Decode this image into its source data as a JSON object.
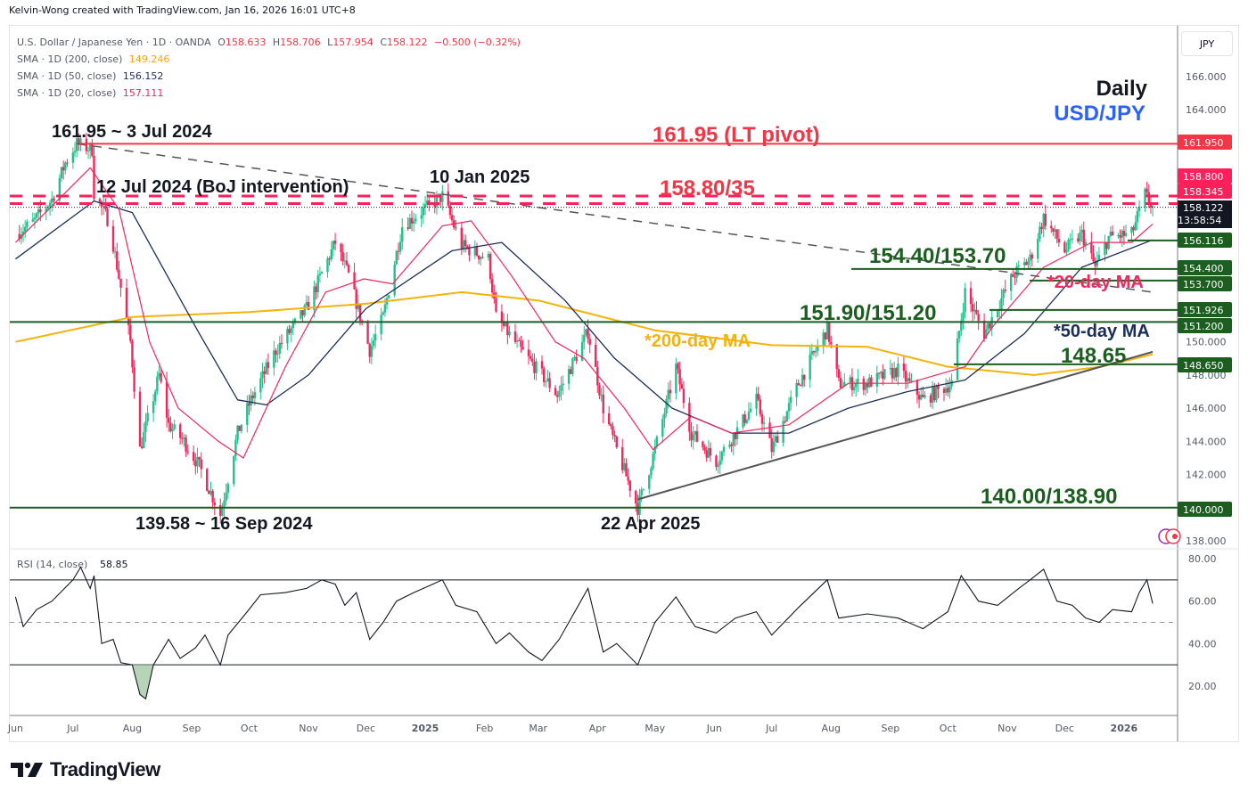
{
  "header": {
    "credit": "Kelvin-Wong created with TradingView.com, Jan 16, 2026 16:01 UTC+8"
  },
  "legend": {
    "symbol": "U.S. Dollar / Japanese Yen · 1D · OANDA",
    "open_label": "O",
    "open": "158.633",
    "high_label": "H",
    "high": "158.706",
    "low_label": "L",
    "low": "157.954",
    "close_label": "C",
    "close": "158.122",
    "change": "−0.500 (−0.32%)",
    "sma200_label": "SMA · 1D (200, close)",
    "sma200": "149.246",
    "sma50_label": "SMA · 1D (50, close)",
    "sma50": "156.152",
    "sma20_label": "SMA · 1D (20, close)",
    "sma20": "157.111"
  },
  "currency_button": "JPY",
  "branding": {
    "logo_text": "TradingView"
  },
  "colors": {
    "up": "#22c08a",
    "down": "#f2275d",
    "sma20": "#f2275d",
    "sma50": "#1a2e5a",
    "sma200": "#f5b30a",
    "pivot": "#f23645",
    "resistance": "#ff1f5a",
    "support": "#1b5e20",
    "title_blue": "#2962ff"
  },
  "chart_data": {
    "type": "candlestick",
    "title": "USD/JPY Daily",
    "subtitle": "Daily",
    "symbol_label": "USD/JPY",
    "ylabel": "JPY",
    "ylim": [
      137.3,
      167.0
    ],
    "price_ticks": [
      "166.000",
      "164.000",
      "150.000",
      "148.000",
      "146.000",
      "144.000",
      "142.000",
      "138.000"
    ],
    "x_ticks": [
      "Jun",
      "Jul",
      "Aug",
      "Sep",
      "Oct",
      "Nov",
      "Dec",
      "2025",
      "Feb",
      "Mar",
      "Apr",
      "May",
      "Jun",
      "Jul",
      "Aug",
      "Sep",
      "Oct",
      "Nov",
      "Dec",
      "2026"
    ],
    "price_path": [
      [
        "2024-06-01",
        156.5
      ],
      [
        "2024-06-10",
        157.2
      ],
      [
        "2024-06-20",
        158.6
      ],
      [
        "2024-06-27",
        160.8
      ],
      [
        "2024-07-03",
        161.95
      ],
      [
        "2024-07-11",
        161.6
      ],
      [
        "2024-07-12",
        159.0
      ],
      [
        "2024-07-20",
        157.2
      ],
      [
        "2024-07-31",
        150.0
      ],
      [
        "2024-08-05",
        143.5
      ],
      [
        "2024-08-15",
        148.0
      ],
      [
        "2024-08-20",
        145.0
      ],
      [
        "2024-08-28",
        144.0
      ],
      [
        "2024-09-05",
        142.5
      ],
      [
        "2024-09-16",
        139.58
      ],
      [
        "2024-09-25",
        144.5
      ],
      [
        "2024-10-02",
        146.5
      ],
      [
        "2024-10-15",
        149.5
      ],
      [
        "2024-10-31",
        152.0
      ],
      [
        "2024-11-15",
        156.0
      ],
      [
        "2024-11-22",
        154.0
      ],
      [
        "2024-12-03",
        149.5
      ],
      [
        "2024-12-10",
        151.5
      ],
      [
        "2024-12-20",
        157.0
      ],
      [
        "2025-01-10",
        158.8
      ],
      [
        "2025-01-20",
        155.8
      ],
      [
        "2025-02-03",
        155.0
      ],
      [
        "2025-02-07",
        151.5
      ],
      [
        "2025-02-20",
        149.5
      ],
      [
        "2025-03-03",
        148.0
      ],
      [
        "2025-03-11",
        146.8
      ],
      [
        "2025-03-27",
        150.6
      ],
      [
        "2025-04-04",
        146.0
      ],
      [
        "2025-04-11",
        143.5
      ],
      [
        "2025-04-22",
        140.0
      ],
      [
        "2025-05-01",
        143.5
      ],
      [
        "2025-05-12",
        148.5
      ],
      [
        "2025-05-20",
        144.5
      ],
      [
        "2025-06-02",
        142.8
      ],
      [
        "2025-06-12",
        144.5
      ],
      [
        "2025-06-23",
        146.5
      ],
      [
        "2025-07-01",
        143.5
      ],
      [
        "2025-07-15",
        147.5
      ],
      [
        "2025-07-30",
        150.8
      ],
      [
        "2025-08-05",
        147.5
      ],
      [
        "2025-08-20",
        147.5
      ],
      [
        "2025-09-05",
        148.3
      ],
      [
        "2025-09-18",
        146.5
      ],
      [
        "2025-10-03",
        147.5
      ],
      [
        "2025-10-10",
        153.0
      ],
      [
        "2025-10-20",
        150.5
      ],
      [
        "2025-11-04",
        154.0
      ],
      [
        "2025-11-13",
        155.0
      ],
      [
        "2025-11-20",
        157.5
      ],
      [
        "2025-12-01",
        155.5
      ],
      [
        "2025-12-10",
        156.5
      ],
      [
        "2025-12-17",
        154.5
      ],
      [
        "2025-12-24",
        156.3
      ],
      [
        "2026-01-05",
        156.5
      ],
      [
        "2026-01-12",
        158.9
      ],
      [
        "2026-01-16",
        158.122
      ]
    ],
    "sma200_path": [
      [
        "2024-06-01",
        150.0
      ],
      [
        "2024-08-01",
        151.5
      ],
      [
        "2024-10-01",
        151.8
      ],
      [
        "2024-12-01",
        152.3
      ],
      [
        "2025-01-20",
        153.0
      ],
      [
        "2025-03-01",
        152.5
      ],
      [
        "2025-05-01",
        150.7
      ],
      [
        "2025-07-01",
        149.8
      ],
      [
        "2025-08-20",
        149.7
      ],
      [
        "2025-10-01",
        148.5
      ],
      [
        "2025-11-15",
        148.0
      ],
      [
        "2025-12-20",
        148.5
      ],
      [
        "2026-01-16",
        149.246
      ]
    ],
    "sma50_path": [
      [
        "2024-06-01",
        155.0
      ],
      [
        "2024-07-12",
        158.5
      ],
      [
        "2024-08-01",
        157.8
      ],
      [
        "2024-09-05",
        150.5
      ],
      [
        "2024-09-25",
        146.5
      ],
      [
        "2024-10-10",
        146.2
      ],
      [
        "2024-11-01",
        148.0
      ],
      [
        "2024-12-01",
        152.0
      ],
      [
        "2025-01-15",
        155.5
      ],
      [
        "2025-02-10",
        156.0
      ],
      [
        "2025-03-15",
        152.5
      ],
      [
        "2025-04-10",
        149.0
      ],
      [
        "2025-05-10",
        146.0
      ],
      [
        "2025-06-10",
        144.5
      ],
      [
        "2025-07-10",
        144.5
      ],
      [
        "2025-08-10",
        146.0
      ],
      [
        "2025-09-10",
        147.0
      ],
      [
        "2025-10-10",
        147.7
      ],
      [
        "2025-11-10",
        150.5
      ],
      [
        "2025-12-10",
        154.5
      ],
      [
        "2026-01-16",
        156.152
      ]
    ],
    "sma20_path": [
      [
        "2024-06-01",
        156.0
      ],
      [
        "2024-07-10",
        160.5
      ],
      [
        "2024-07-25",
        158.0
      ],
      [
        "2024-08-10",
        150.0
      ],
      [
        "2024-08-25",
        146.0
      ],
      [
        "2024-09-15",
        144.0
      ],
      [
        "2024-09-28",
        143.0
      ],
      [
        "2024-10-20",
        148.5
      ],
      [
        "2024-11-10",
        153.0
      ],
      [
        "2024-11-30",
        153.8
      ],
      [
        "2024-12-15",
        153.5
      ],
      [
        "2025-01-10",
        157.0
      ],
      [
        "2025-01-25",
        157.3
      ],
      [
        "2025-02-15",
        154.0
      ],
      [
        "2025-03-10",
        150.0
      ],
      [
        "2025-03-25",
        149.0
      ],
      [
        "2025-04-15",
        146.0
      ],
      [
        "2025-04-30",
        143.5
      ],
      [
        "2025-05-20",
        145.5
      ],
      [
        "2025-06-10",
        144.5
      ],
      [
        "2025-07-10",
        145.0
      ],
      [
        "2025-08-10",
        147.5
      ],
      [
        "2025-09-10",
        147.5
      ],
      [
        "2025-10-10",
        148.5
      ],
      [
        "2025-10-25",
        151.0
      ],
      [
        "2025-11-20",
        154.5
      ],
      [
        "2025-12-15",
        156.0
      ],
      [
        "2026-01-05",
        156.0
      ],
      [
        "2026-01-16",
        157.111
      ]
    ],
    "horizontal_levels": [
      {
        "price": 161.95,
        "label": "161.950",
        "style": "solid",
        "color": "pivot"
      },
      {
        "price": 158.8,
        "label": "158.800",
        "style": "dashed",
        "color": "resistance"
      },
      {
        "price": 158.345,
        "label": "158.345",
        "style": "dashed",
        "color": "resistance"
      },
      {
        "price": 156.116,
        "label": "156.116",
        "style": "solid",
        "color": "support"
      },
      {
        "price": 154.4,
        "label": "154.400",
        "style": "solid",
        "color": "support"
      },
      {
        "price": 153.7,
        "label": "153.700",
        "style": "solid",
        "color": "support"
      },
      {
        "price": 151.926,
        "label": "151.926",
        "style": "solid",
        "color": "support"
      },
      {
        "price": 151.2,
        "label": "151.200",
        "style": "solid",
        "color": "support"
      },
      {
        "price": 148.65,
        "label": "148.650",
        "style": "solid",
        "color": "support"
      },
      {
        "price": 140.0,
        "label": "140.000",
        "style": "solid",
        "color": "support"
      }
    ],
    "last_price": {
      "price": "158.122",
      "countdown": "13:58:54"
    },
    "annotations": [
      {
        "text": "161.95 ~ 3 Jul 2024",
        "color": "#131722"
      },
      {
        "text": "12 Jul 2024 (BoJ intervention)",
        "color": "#131722"
      },
      {
        "text": "10 Jan 2025",
        "color": "#131722"
      },
      {
        "text": "161.95 (LT pivot)",
        "color": "#f23645"
      },
      {
        "text": "158.80/35",
        "color": "#f23645"
      },
      {
        "text": "154.40/153.70",
        "color": "#1b5e20"
      },
      {
        "text": "*20-day MA",
        "color": "#f2275d"
      },
      {
        "text": "151.90/151.20",
        "color": "#1b5e20"
      },
      {
        "text": "*50-day MA",
        "color": "#1a2e5a"
      },
      {
        "text": "*200-day MA",
        "color": "#f5b30a"
      },
      {
        "text": "148.65",
        "color": "#1b5e20"
      },
      {
        "text": "140.00/138.90",
        "color": "#1b5e20"
      },
      {
        "text": "139.58 ~ 16 Sep 2024",
        "color": "#131722"
      },
      {
        "text": "22 Apr 2025",
        "color": "#131722"
      }
    ],
    "trendlines": [
      {
        "name": "descending-resistance",
        "from": [
          "2024-07-03",
          161.95
        ],
        "to": [
          "2026-01-16",
          153.0
        ],
        "style": "dashed"
      },
      {
        "name": "ascending-support",
        "from": [
          "2025-04-22",
          140.5
        ],
        "to": [
          "2026-01-16",
          149.4
        ],
        "style": "solid"
      }
    ],
    "rsi": {
      "label": "RSI (14, close)",
      "value": "58.85",
      "ylim": [
        0,
        90
      ],
      "ticks": [
        "80.00",
        "60.00",
        "40.00",
        "20.00"
      ],
      "upper": 70,
      "middle": 50,
      "lower": 30,
      "path": [
        [
          "2024-06-01",
          62
        ],
        [
          "2024-06-05",
          48
        ],
        [
          "2024-06-12",
          56
        ],
        [
          "2024-06-20",
          60
        ],
        [
          "2024-07-01",
          70
        ],
        [
          "2024-07-05",
          76
        ],
        [
          "2024-07-10",
          66
        ],
        [
          "2024-07-12",
          72
        ],
        [
          "2024-07-16",
          40
        ],
        [
          "2024-07-22",
          42
        ],
        [
          "2024-07-26",
          31
        ],
        [
          "2024-08-01",
          30
        ],
        [
          "2024-08-05",
          16
        ],
        [
          "2024-08-08",
          14
        ],
        [
          "2024-08-12",
          30
        ],
        [
          "2024-08-20",
          42
        ],
        [
          "2024-08-26",
          33
        ],
        [
          "2024-09-03",
          38
        ],
        [
          "2024-09-08",
          44
        ],
        [
          "2024-09-16",
          30
        ],
        [
          "2024-09-20",
          44
        ],
        [
          "2024-09-30",
          55
        ],
        [
          "2024-10-07",
          63
        ],
        [
          "2024-10-20",
          64
        ],
        [
          "2024-10-31",
          66
        ],
        [
          "2024-11-08",
          70
        ],
        [
          "2024-11-15",
          68
        ],
        [
          "2024-11-20",
          58
        ],
        [
          "2024-11-26",
          64
        ],
        [
          "2024-12-03",
          42
        ],
        [
          "2024-12-10",
          50
        ],
        [
          "2024-12-17",
          60
        ],
        [
          "2024-12-26",
          64
        ],
        [
          "2025-01-05",
          68
        ],
        [
          "2025-01-10",
          70
        ],
        [
          "2025-01-17",
          58
        ],
        [
          "2025-01-28",
          55
        ],
        [
          "2025-02-07",
          40
        ],
        [
          "2025-02-14",
          45
        ],
        [
          "2025-02-24",
          36
        ],
        [
          "2025-03-03",
          32
        ],
        [
          "2025-03-12",
          42
        ],
        [
          "2025-03-27",
          66
        ],
        [
          "2025-04-04",
          36
        ],
        [
          "2025-04-11",
          40
        ],
        [
          "2025-04-22",
          30
        ],
        [
          "2025-05-01",
          50
        ],
        [
          "2025-05-12",
          62
        ],
        [
          "2025-05-22",
          48
        ],
        [
          "2025-06-02",
          45
        ],
        [
          "2025-06-12",
          52
        ],
        [
          "2025-06-23",
          55
        ],
        [
          "2025-07-01",
          44
        ],
        [
          "2025-07-15",
          57
        ],
        [
          "2025-07-30",
          70
        ],
        [
          "2025-08-05",
          52
        ],
        [
          "2025-08-20",
          54
        ],
        [
          "2025-09-05",
          52
        ],
        [
          "2025-09-18",
          47
        ],
        [
          "2025-10-01",
          55
        ],
        [
          "2025-10-08",
          72
        ],
        [
          "2025-10-17",
          60
        ],
        [
          "2025-10-27",
          58
        ],
        [
          "2025-11-07",
          66
        ],
        [
          "2025-11-13",
          70
        ],
        [
          "2025-11-20",
          75
        ],
        [
          "2025-11-27",
          60
        ],
        [
          "2025-12-05",
          58
        ],
        [
          "2025-12-12",
          52
        ],
        [
          "2025-12-19",
          50
        ],
        [
          "2025-12-26",
          56
        ],
        [
          "2026-01-05",
          55
        ],
        [
          "2026-01-09",
          64
        ],
        [
          "2026-01-13",
          70
        ],
        [
          "2026-01-16",
          58.85
        ]
      ]
    }
  }
}
